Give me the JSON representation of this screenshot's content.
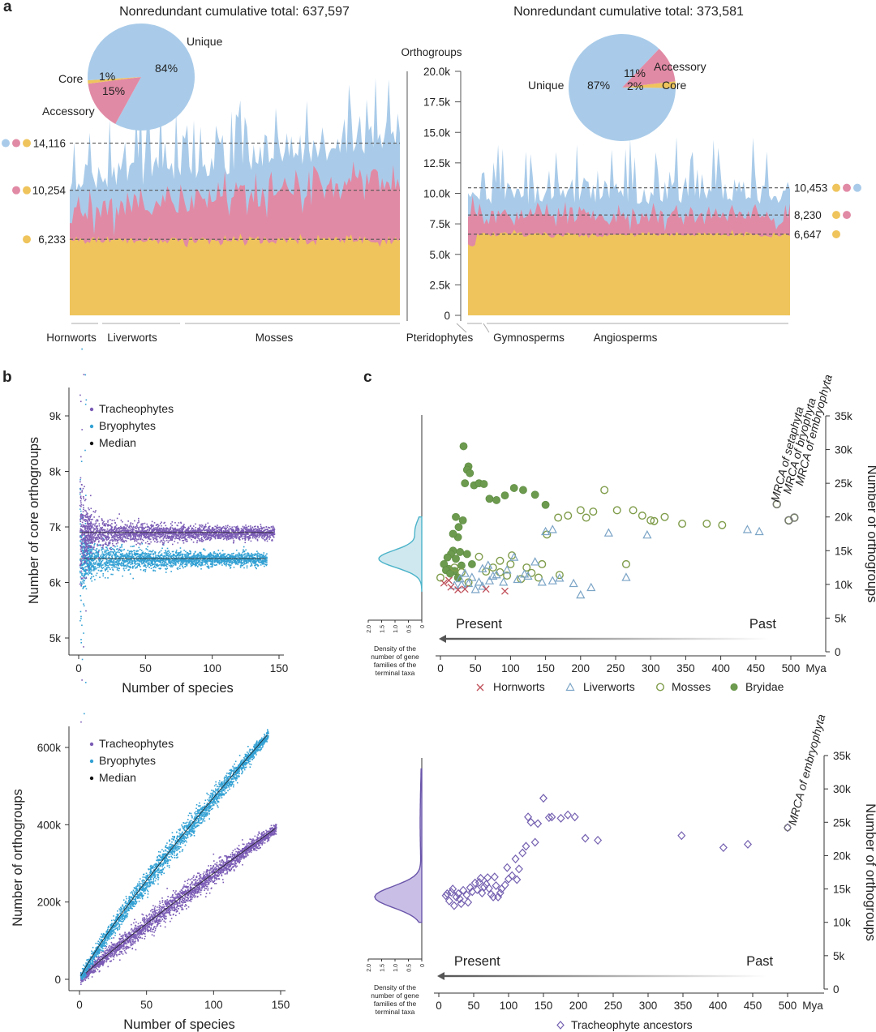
{
  "panels": {
    "a": "a",
    "b": "b",
    "c": "c"
  },
  "colors": {
    "unique": "#a9cbe9",
    "accessory": "#e18aa5",
    "core": "#efc45c",
    "tracheophyte": "#7a5bb5",
    "bryophyte": "#33a1d4",
    "median": "#111111",
    "hornwort": "#c0505a",
    "liverwort": "#7ba4c6",
    "moss": "#7f9c4a",
    "bryidae": "#6c9a4e",
    "tracheo_ancestor": "#7460b0"
  },
  "panel_a": {
    "left_title": "Nonredundant cumulative total: 637,597",
    "right_title": "Nonredundant cumulative total: 373,581",
    "axis_title": "Orthogroups",
    "axis_ticks": [
      "20.0k",
      "17.5k",
      "15.0k",
      "12.5k",
      "10.0k",
      "7.5k",
      "5.0k",
      "2.5k",
      "0"
    ],
    "left_pie": {
      "slices": [
        {
          "label": "Unique",
          "pct": "84%",
          "value": 84
        },
        {
          "label": "Core",
          "pct": "1%",
          "value": 1
        },
        {
          "label": "Accessory",
          "pct": "15%",
          "value": 15
        }
      ]
    },
    "right_pie": {
      "slices": [
        {
          "label": "Unique",
          "pct": "87%",
          "value": 87
        },
        {
          "label": "Accessory",
          "pct": "11%",
          "value": 11
        },
        {
          "label": "Core",
          "pct": "2%",
          "value": 2
        }
      ]
    },
    "left_medians": [
      {
        "value": 14116,
        "label": "14,116"
      },
      {
        "value": 10254,
        "label": "10,254"
      },
      {
        "value": 6233,
        "label": "6,233"
      }
    ],
    "right_medians": [
      {
        "value": 10453,
        "label": "10,453"
      },
      {
        "value": 8230,
        "label": "8,230"
      },
      {
        "value": 6647,
        "label": "6,647"
      }
    ],
    "groups": [
      "Hornworts",
      "Liverworts",
      "Mosses",
      "Pteridophytes",
      "Gymnosperms",
      "Angiosperms"
    ],
    "left_core_mean": 6200,
    "left_accessory_mean": 10250,
    "left_total_mean": 14100,
    "right_core_mean": 6650,
    "right_accessory_mean": 8230,
    "right_total_mean": 10450
  },
  "panel_b": {
    "legend": [
      "Tracheophytes",
      "Bryophytes",
      "Median"
    ],
    "top": {
      "ylabel": "Number of core orthogroups",
      "xlabel": "Number of species",
      "yticks": [
        "5k",
        "6k",
        "7k",
        "8k",
        "9k"
      ],
      "xticks": [
        "0",
        "50",
        "100",
        "150"
      ]
    },
    "bottom": {
      "ylabel": "Number of orthogroups",
      "xlabel": "Number of species",
      "yticks": [
        "0",
        "200k",
        "400k",
        "600k"
      ],
      "xticks": [
        "0",
        "50",
        "100",
        "150"
      ]
    }
  },
  "panel_c": {
    "top": {
      "present": "Present",
      "past": "Past",
      "density_caption": [
        "Density of the",
        "number of gene",
        "families of the",
        "terminal taxa"
      ],
      "density_ticks": [
        "2.0",
        "1.5",
        "1.0",
        "0.5",
        "0"
      ],
      "xticks": [
        "0",
        "50",
        "100",
        "150",
        "200",
        "250",
        "300",
        "350",
        "400",
        "450",
        "500"
      ],
      "xunit": "Mya",
      "yticks": [
        "0",
        "5k",
        "10k",
        "15k",
        "20k",
        "25k",
        "30k",
        "35k"
      ],
      "ylabel": "Number of orthogroups",
      "mrca_labels": [
        "MRCA of setaphyta",
        "MRCA of bryophyta",
        "MRCA of embryophyta"
      ],
      "legend": [
        "Hornworts",
        "Liverworts",
        "Mosses",
        "Bryidae"
      ],
      "series": {
        "hornworts": [
          [
            5,
            10.2
          ],
          [
            15,
            9.6
          ],
          [
            25,
            9.2
          ],
          [
            35,
            9.3
          ],
          [
            65,
            9.3
          ],
          [
            92,
            9.0
          ],
          [
            12,
            10.6
          ]
        ],
        "liverworts": [
          [
            20,
            9.8
          ],
          [
            30,
            9.9
          ],
          [
            40,
            10.1
          ],
          [
            45,
            11.0
          ],
          [
            55,
            10.3
          ],
          [
            60,
            9.7
          ],
          [
            70,
            10.5
          ],
          [
            80,
            11.4
          ],
          [
            90,
            10.3
          ],
          [
            95,
            12.1
          ],
          [
            110,
            10.7
          ],
          [
            125,
            11.2
          ],
          [
            135,
            13.3
          ],
          [
            145,
            10.3
          ],
          [
            160,
            10.5
          ],
          [
            170,
            10.9
          ],
          [
            190,
            10.1
          ],
          [
            200,
            8.4
          ],
          [
            215,
            9.5
          ],
          [
            240,
            17.6
          ],
          [
            265,
            11.0
          ],
          [
            295,
            17.3
          ],
          [
            150,
            17.8
          ],
          [
            160,
            18.1
          ],
          [
            438,
            18.1
          ],
          [
            455,
            17.8
          ],
          [
            60,
            12.3
          ],
          [
            68,
            12.8
          ],
          [
            75,
            11.2
          ],
          [
            105,
            14.0
          ],
          [
            120,
            11.5
          ],
          [
            35,
            11.6
          ],
          [
            28,
            10.8
          ],
          [
            50,
            9.2
          ]
        ],
        "mosses": [
          [
            0,
            11.0
          ],
          [
            20,
            12.5
          ],
          [
            30,
            11.8
          ],
          [
            40,
            10.3
          ],
          [
            55,
            14.1
          ],
          [
            65,
            11.9
          ],
          [
            75,
            12.5
          ],
          [
            85,
            13.5
          ],
          [
            95,
            11.3
          ],
          [
            102,
            14.3
          ],
          [
            115,
            10.8
          ],
          [
            123,
            12.5
          ],
          [
            130,
            11.7
          ],
          [
            140,
            11.0
          ],
          [
            152,
            17.4
          ],
          [
            168,
            19.9
          ],
          [
            182,
            20.2
          ],
          [
            200,
            21.0
          ],
          [
            208,
            19.9
          ],
          [
            218,
            20.8
          ],
          [
            234,
            24.0
          ],
          [
            252,
            21.0
          ],
          [
            275,
            21.0
          ],
          [
            288,
            20.2
          ],
          [
            300,
            19.5
          ],
          [
            305,
            19.4
          ],
          [
            320,
            20.0
          ],
          [
            345,
            19.0
          ],
          [
            380,
            19.0
          ],
          [
            402,
            18.8
          ],
          [
            480,
            21.9
          ],
          [
            497,
            19.5
          ],
          [
            505,
            19.9
          ],
          [
            265,
            13.0
          ],
          [
            170,
            11.4
          ],
          [
            145,
            13.0
          ],
          [
            100,
            13.0
          ],
          [
            85,
            11.8
          ]
        ],
        "bryidae": [
          [
            5,
            13.0
          ],
          [
            12,
            12.3
          ],
          [
            18,
            15.0
          ],
          [
            25,
            17.0
          ],
          [
            32,
            19.5
          ],
          [
            35,
            25.0
          ],
          [
            40,
            27.5
          ],
          [
            48,
            24.7
          ],
          [
            55,
            25.0
          ],
          [
            62,
            24.9
          ],
          [
            70,
            22.7
          ],
          [
            80,
            22.5
          ],
          [
            92,
            23.2
          ],
          [
            105,
            24.3
          ],
          [
            118,
            24.0
          ],
          [
            135,
            23.3
          ],
          [
            150,
            21.8
          ],
          [
            33,
            30.5
          ],
          [
            38,
            27.0
          ],
          [
            42,
            26.5
          ],
          [
            15,
            14.5
          ],
          [
            22,
            13.8
          ],
          [
            28,
            14.8
          ],
          [
            10,
            14.0
          ],
          [
            20,
            12.0
          ],
          [
            25,
            11.0
          ],
          [
            30,
            12.8
          ],
          [
            8,
            12.1
          ],
          [
            14,
            11.6
          ],
          [
            38,
            14.5
          ],
          [
            45,
            13.0
          ],
          [
            18,
            17.5
          ],
          [
            22,
            20.0
          ],
          [
            26,
            18.5
          ]
        ]
      }
    },
    "bottom": {
      "present": "Present",
      "past": "Past",
      "density_caption": [
        "Density of the",
        "number of gene",
        "families of the",
        "terminal taxa"
      ],
      "density_ticks": [
        "2.0",
        "1.5",
        "1.0",
        "0.5",
        "0"
      ],
      "xticks": [
        "0",
        "50",
        "100",
        "150",
        "200",
        "250",
        "300",
        "350",
        "400",
        "450",
        "500"
      ],
      "xunit": "Mya",
      "yticks": [
        "0",
        "5k",
        "10k",
        "15k",
        "20k",
        "25k",
        "30k",
        "35k"
      ],
      "ylabel": "Number of orthogroups",
      "mrca_labels": [
        "MRCA of embryophyta"
      ],
      "legend": [
        "Tracheophyte ancestors"
      ],
      "series": {
        "tracheophyte_ancestors": [
          [
            10,
            14.0
          ],
          [
            15,
            13.2
          ],
          [
            18,
            14.5
          ],
          [
            22,
            12.5
          ],
          [
            25,
            13.8
          ],
          [
            28,
            14.3
          ],
          [
            30,
            13.5
          ],
          [
            35,
            14.8
          ],
          [
            40,
            14.1
          ],
          [
            42,
            13.0
          ],
          [
            45,
            15.2
          ],
          [
            48,
            14.6
          ],
          [
            52,
            15.9
          ],
          [
            55,
            14.9
          ],
          [
            58,
            16.0
          ],
          [
            62,
            14.4
          ],
          [
            65,
            15.3
          ],
          [
            70,
            16.7
          ],
          [
            72,
            15.1
          ],
          [
            75,
            14.2
          ],
          [
            80,
            16.8
          ],
          [
            82,
            15.5
          ],
          [
            85,
            13.8
          ],
          [
            90,
            15.0
          ],
          [
            95,
            15.6
          ],
          [
            98,
            18.2
          ],
          [
            100,
            16.5
          ],
          [
            105,
            17.0
          ],
          [
            110,
            19.5
          ],
          [
            112,
            16.4
          ],
          [
            115,
            18.0
          ],
          [
            120,
            20.4
          ],
          [
            125,
            21.4
          ],
          [
            128,
            25.8
          ],
          [
            132,
            25.0
          ],
          [
            138,
            22.0
          ],
          [
            142,
            24.8
          ],
          [
            150,
            28.6
          ],
          [
            158,
            25.7
          ],
          [
            162,
            25.8
          ],
          [
            175,
            25.6
          ],
          [
            185,
            26.1
          ],
          [
            195,
            25.8
          ],
          [
            210,
            22.6
          ],
          [
            228,
            22.3
          ],
          [
            348,
            23.0
          ],
          [
            408,
            21.2
          ],
          [
            443,
            21.7
          ],
          [
            500,
            24.2
          ],
          [
            60,
            16.6
          ],
          [
            68,
            15.7
          ],
          [
            78,
            13.8
          ],
          [
            88,
            14.4
          ],
          [
            32,
            12.8
          ],
          [
            20,
            15.0
          ],
          [
            12,
            14.3
          ]
        ]
      }
    }
  }
}
